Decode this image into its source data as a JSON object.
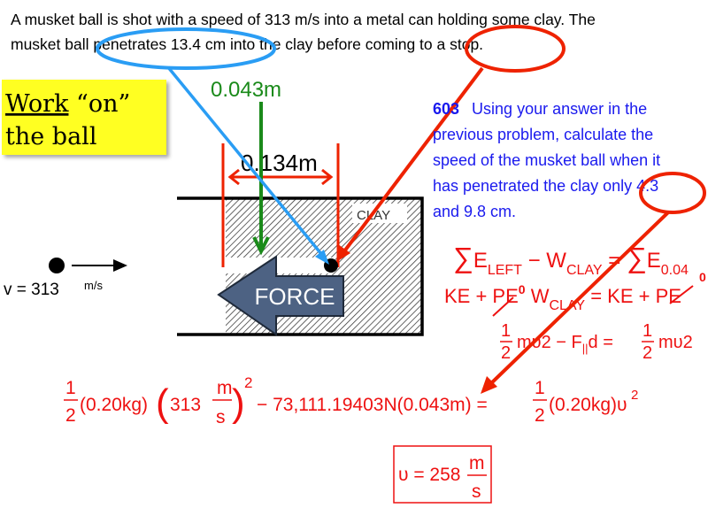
{
  "problem": {
    "line1": "A musket ball is shot with a speed of 313 m/s into a metal can holding some clay.  The",
    "line2": "musket ball penetrates 13.4 cm into the clay before coming to a stop."
  },
  "callout": {
    "work": "Work",
    "on": " “on”",
    "line2": "the ball"
  },
  "diagram": {
    "green_label": "0.043m",
    "width_label": "0.134m",
    "clay_label": "CLAY",
    "force_label": "FORCE",
    "velocity_label": "v = 313",
    "velocity_unit": "m/s"
  },
  "question": {
    "number": "603",
    "lines": [
      "Using your answer in the",
      "previous problem, calculate the",
      "speed of the musket ball when it",
      "has penetrated the clay only 4.3",
      "and 9.8 cm."
    ]
  },
  "equations": {
    "eq1": {
      "sum": "∑",
      "e": "E",
      "left": "LEFT",
      "minus_w": " − W",
      "clay": "CLAY",
      "eq": " = ",
      "e2": "E",
      "sub": "0.04"
    },
    "eq2": {
      "lhs": "KE + PE",
      "zero": "0",
      "w": " W",
      "clay": "CLAY",
      "rhs": " = KE + PE"
    },
    "eq3": {
      "one": "1",
      "two": "2",
      "mv": "mυ2",
      "minus": " − F",
      "par": "||",
      "d": "d = ",
      "rhs": "mυ2"
    },
    "main": {
      "one": "1",
      "two": "2",
      "mass": "(0.20kg)",
      "v": "313",
      "m": "m",
      "s": "s",
      "sq": "2",
      "work": "− 73,111.19403N(0.043m) =",
      "mass2": "(0.20kg)υ",
      "sq2": "2"
    },
    "answer": {
      "lhs": "υ = 258",
      "m": "m",
      "s": "s"
    }
  },
  "colors": {
    "red": "#ee1111",
    "blue_annotation": "#2a9df4",
    "green": "#1a8a1a",
    "question_text": "#1a1aee",
    "force_arrow": "#4d6283",
    "callout_bg": "#ffff22"
  }
}
